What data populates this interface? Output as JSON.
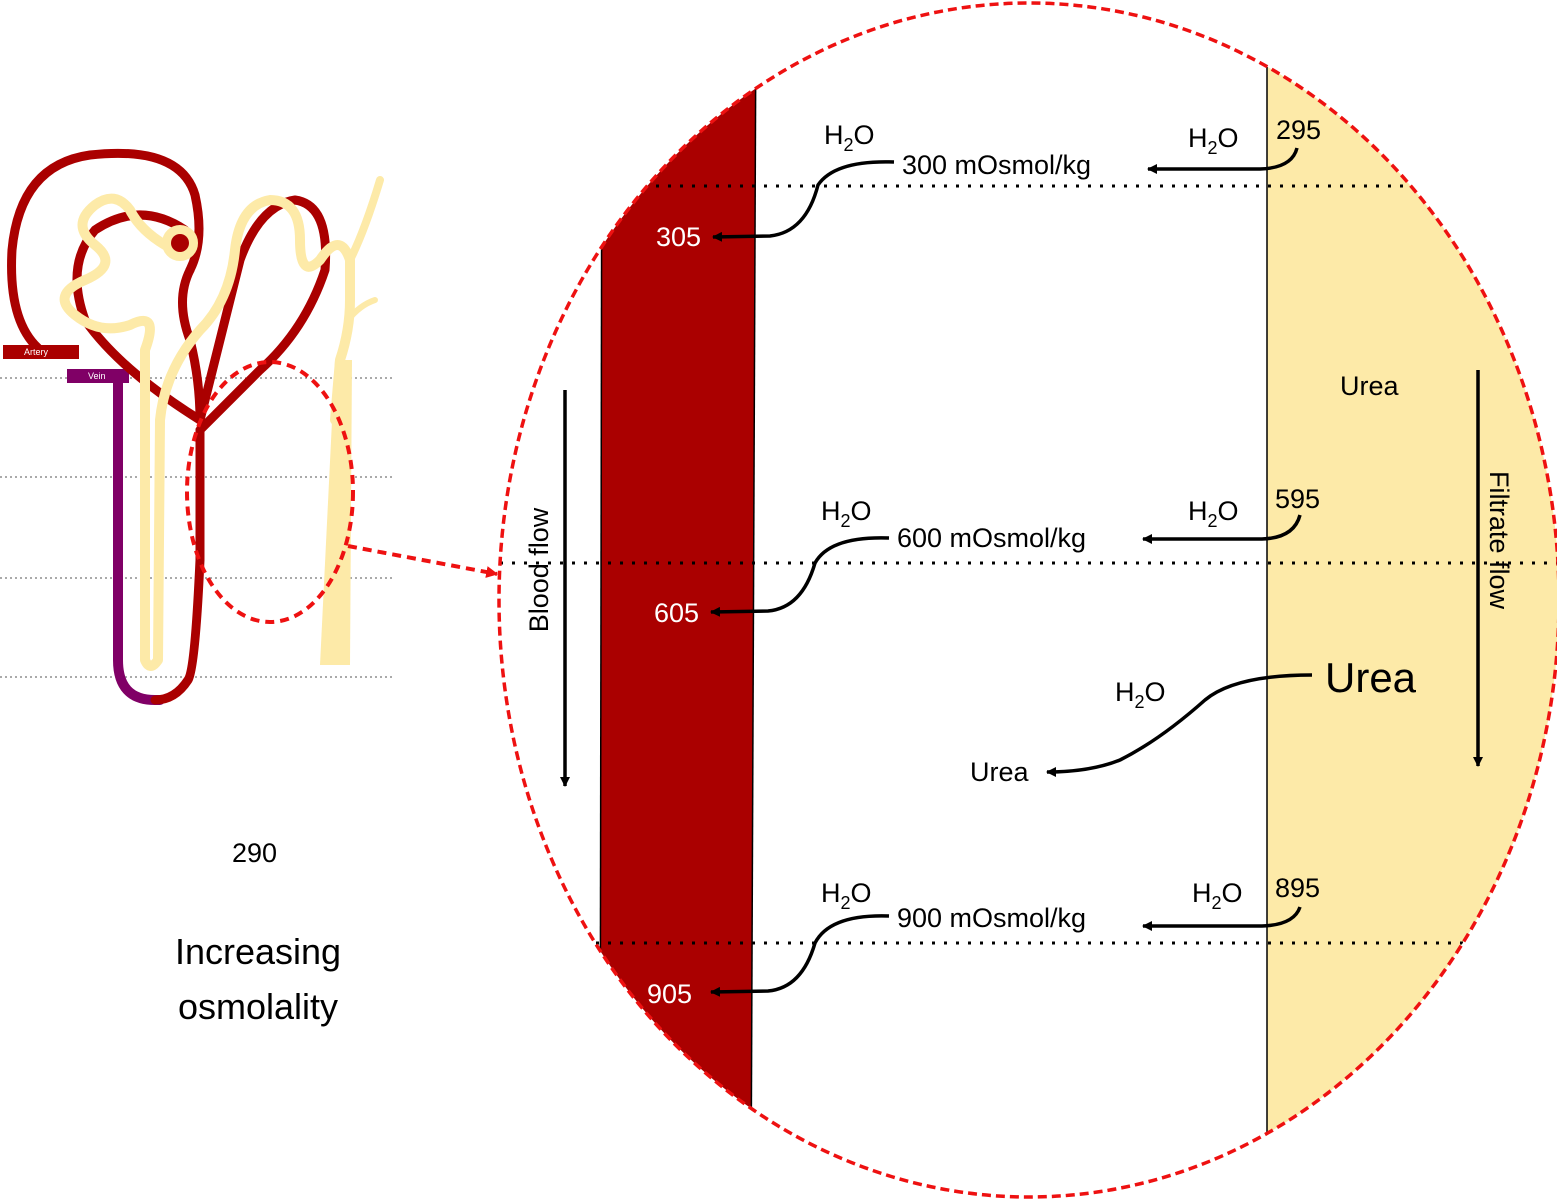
{
  "nephron": {
    "artery_label": "Artery",
    "vein_label": "Vein"
  },
  "side": {
    "value": "290",
    "caption_line1": "Increasing",
    "caption_line2": "osmolality"
  },
  "zoom": {
    "levels": [
      {
        "tissue": "300 mOsmol/kg",
        "blood": "305",
        "filtrate": "295"
      },
      {
        "tissue": "600 mOsmol/kg",
        "blood": "605",
        "filtrate": "595"
      },
      {
        "tissue": "900 mOsmol/kg",
        "blood": "905",
        "filtrate": "895"
      }
    ],
    "water_main": "H",
    "water_sub": "2",
    "water_tail": "O",
    "urea_top": "Urea",
    "urea_big": "Urea",
    "urea_small": "Urea",
    "blood_flow": "Blood flow",
    "filtrate_flow": "Filtrate flow"
  },
  "colors": {
    "blood": "#aa0000",
    "filtrate": "#fdeaa8",
    "vein": "#800066",
    "highlight": "#ee1111"
  }
}
